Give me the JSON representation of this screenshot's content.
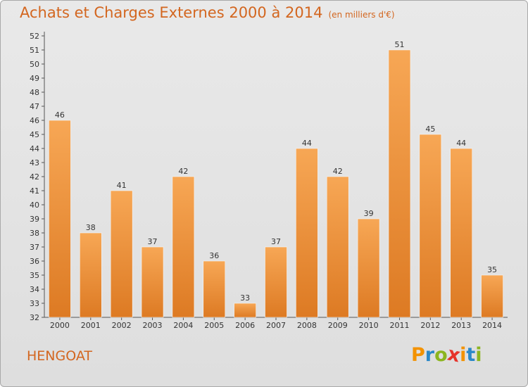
{
  "header": {
    "title": "Achats et Charges Externes 2000 à 2014",
    "subtitle": "(en milliers d'€)"
  },
  "footer": {
    "commune": "HENGOAT",
    "logo": [
      "P",
      "r",
      "o",
      "x",
      "i",
      "t",
      "i"
    ]
  },
  "colors": {
    "accent": "#d3661f",
    "bar_top": "#f7a755",
    "bar_bottom": "#dd7a23",
    "logo": [
      "#f39200",
      "#2a88c8",
      "#8cb51f",
      "#e6332a",
      "#f39200",
      "#2a88c8",
      "#8cb51f"
    ]
  },
  "chart_data": {
    "type": "bar",
    "title": "Achats et Charges Externes 2000 à 2014",
    "subtitle": "(en milliers d'€)",
    "xlabel": "",
    "ylabel": "",
    "categories": [
      "2000",
      "2001",
      "2002",
      "2003",
      "2004",
      "2005",
      "2006",
      "2007",
      "2008",
      "2009",
      "2010",
      "2011",
      "2012",
      "2013",
      "2014"
    ],
    "values": [
      46,
      38,
      41,
      37,
      42,
      36,
      33,
      37,
      44,
      42,
      39,
      51,
      45,
      44,
      35
    ],
    "ylim": [
      32,
      52
    ],
    "yticks": [
      32,
      33,
      34,
      35,
      36,
      37,
      38,
      39,
      40,
      41,
      42,
      43,
      44,
      45,
      46,
      47,
      48,
      49,
      50,
      51,
      52
    ],
    "grid": false,
    "legend": "none",
    "data_labels": true
  }
}
